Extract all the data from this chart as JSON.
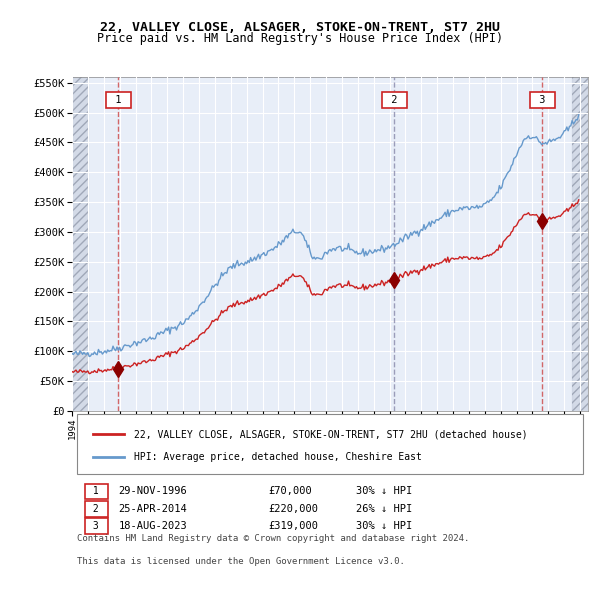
{
  "title": "22, VALLEY CLOSE, ALSAGER, STOKE-ON-TRENT, ST7 2HU",
  "subtitle": "Price paid vs. HM Land Registry's House Price Index (HPI)",
  "sale1_date": "29-NOV-1996",
  "sale1_price": 70000,
  "sale1_pct": "30% ↓ HPI",
  "sale1_year": 1996.91,
  "sale2_date": "25-APR-2014",
  "sale2_price": 220000,
  "sale2_pct": "26% ↓ HPI",
  "sale2_year": 2014.31,
  "sale3_date": "18-AUG-2023",
  "sale3_price": 319000,
  "sale3_pct": "30% ↓ HPI",
  "sale3_year": 2023.63,
  "legend1": "22, VALLEY CLOSE, ALSAGER, STOKE-ON-TRENT, ST7 2HU (detached house)",
  "legend2": "HPI: Average price, detached house, Cheshire East",
  "footer1": "Contains HM Land Registry data © Crown copyright and database right 2024.",
  "footer2": "This data is licensed under the Open Government Licence v3.0.",
  "hpi_color": "#6699cc",
  "price_color": "#cc2222",
  "bg_color": "#e8eef8",
  "plot_bg": "#dce8f0",
  "grid_color": "#ffffff",
  "ylim": [
    0,
    560000
  ],
  "xlim_start": 1994.0,
  "xlim_end": 2026.5
}
